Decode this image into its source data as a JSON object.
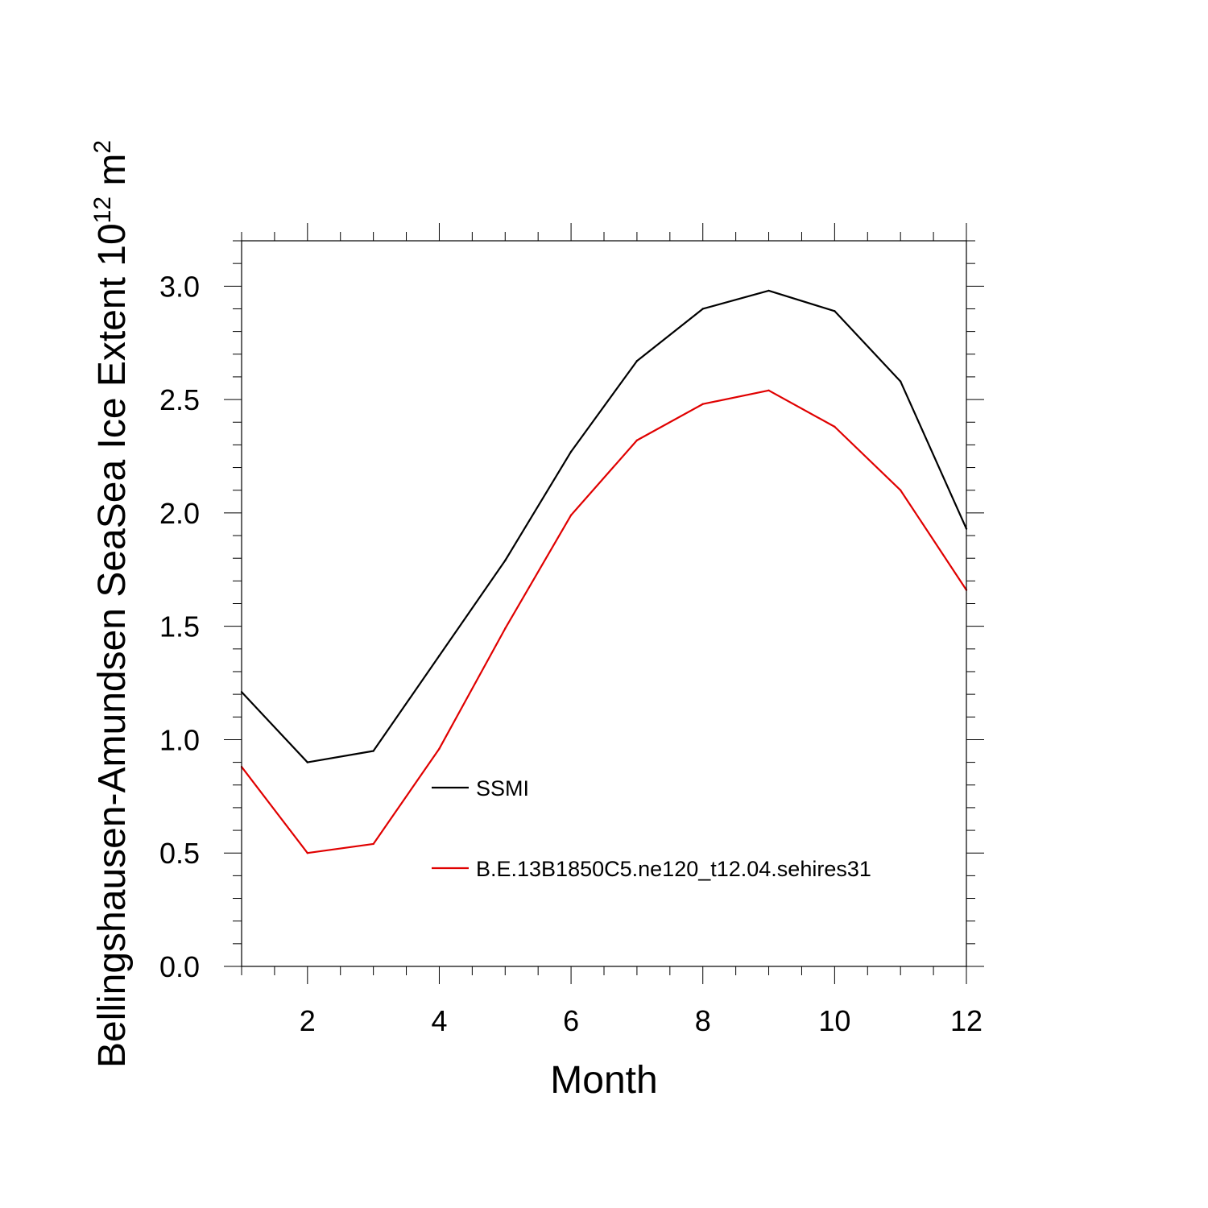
{
  "chart_data": {
    "type": "line",
    "title": "",
    "xlabel": "Month",
    "ylabel_main": "Bellingshausen-Amundsen SeaSea Ice Extent 10",
    "ylabel_exp": "12",
    "ylabel_unit": " m",
    "ylabel_unit_exp": "2",
    "xlim": [
      1,
      12
    ],
    "ylim": [
      0,
      3.2
    ],
    "x_ticks": [
      2,
      4,
      6,
      8,
      10,
      12
    ],
    "x_tick_labels": [
      "2",
      "4",
      "6",
      "8",
      "10",
      "12"
    ],
    "y_ticks": [
      0,
      0.5,
      1.0,
      1.5,
      2.0,
      2.5,
      3.0
    ],
    "y_tick_labels": [
      "0.0",
      "0.5",
      "1.0",
      "1.5",
      "2.0",
      "2.5",
      "3.0"
    ],
    "x": [
      1,
      2,
      3,
      4,
      5,
      6,
      7,
      8,
      9,
      10,
      11,
      12
    ],
    "series": [
      {
        "name": "SSMI",
        "color": "#000000",
        "values": [
          1.21,
          0.9,
          0.95,
          1.37,
          1.79,
          2.27,
          2.67,
          2.9,
          2.98,
          2.89,
          2.58,
          1.93
        ]
      },
      {
        "name": "B.E.13B1850C5.ne120_t12.04.sehires31",
        "color": "#e00000",
        "values": [
          0.88,
          0.5,
          0.54,
          0.96,
          1.49,
          1.99,
          2.32,
          2.48,
          2.54,
          2.38,
          2.1,
          1.66
        ]
      }
    ],
    "grid": false,
    "legend_position": "inside-lower-center"
  }
}
